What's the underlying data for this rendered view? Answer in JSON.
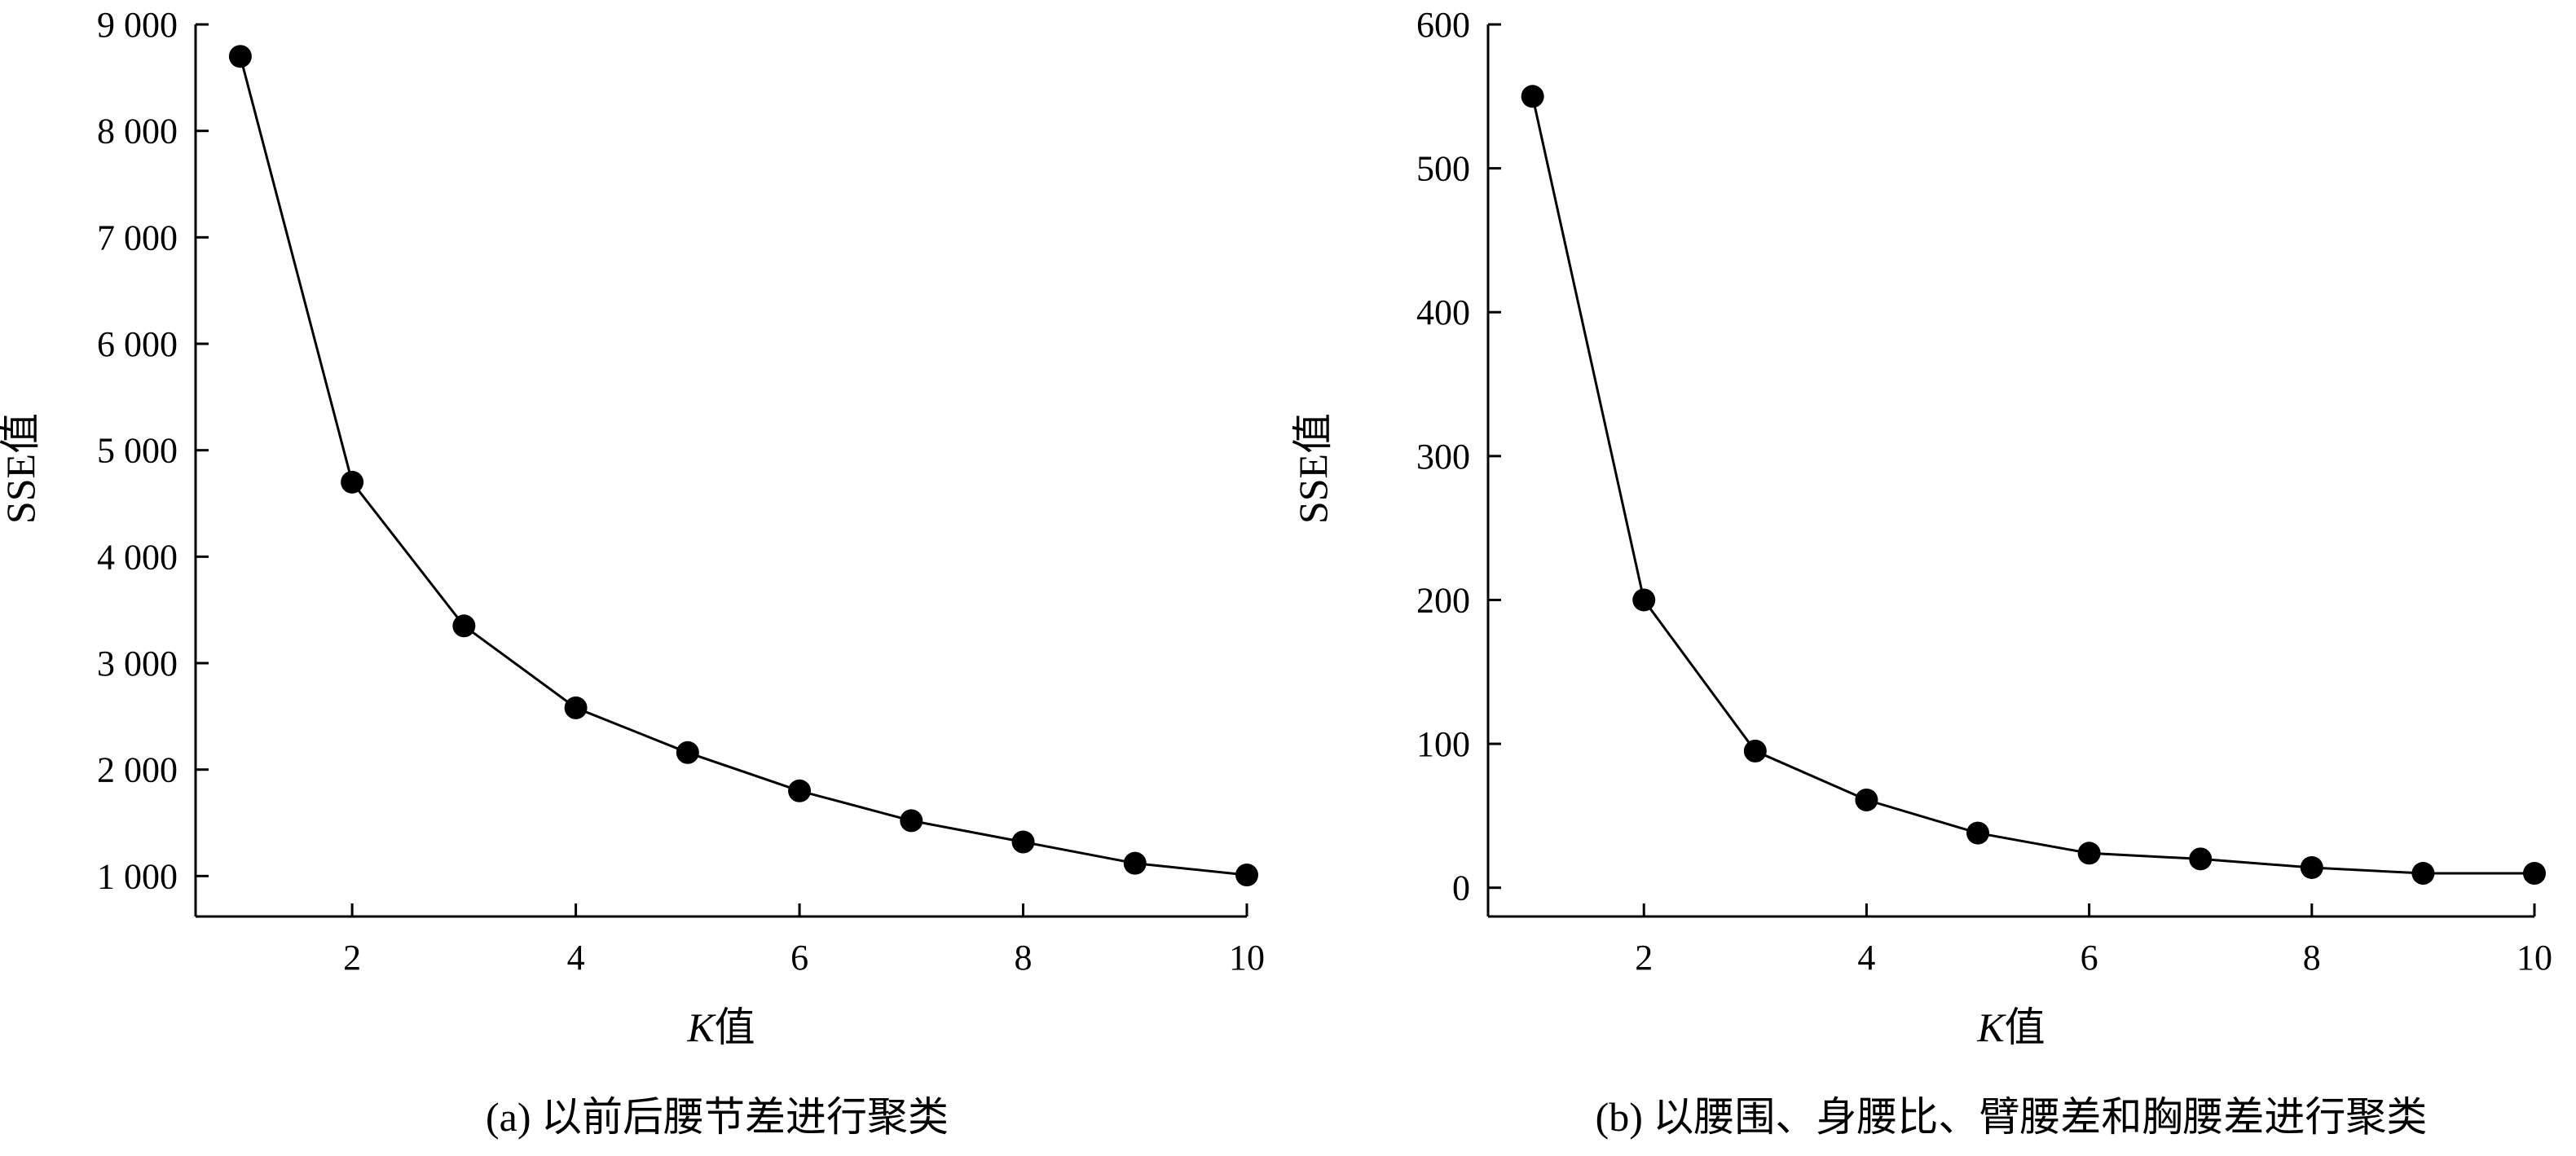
{
  "chart_data": [
    {
      "type": "line",
      "panel": "a",
      "caption": "(a) 以前后腰节差进行聚类",
      "xlabel_italic": "K",
      "xlabel_rest": "值",
      "ylabel": "SSE值",
      "x": [
        1,
        2,
        3,
        4,
        5,
        6,
        7,
        8,
        9,
        10
      ],
      "series": [
        {
          "values": [
            8700,
            4700,
            3350,
            2580,
            2160,
            1800,
            1520,
            1320,
            1120,
            1010
          ]
        }
      ],
      "xlim": [
        0.6,
        10
      ],
      "ylim": [
        620,
        9000
      ],
      "xticks": [
        2,
        4,
        6,
        8,
        10
      ],
      "xtick_labels": [
        "2",
        "4",
        "6",
        "8",
        "10"
      ],
      "yticks": [
        1000,
        2000,
        3000,
        4000,
        5000,
        6000,
        7000,
        8000,
        9000
      ],
      "ytick_labels": [
        "1 000",
        "2 000",
        "3 000",
        "4 000",
        "5 000",
        "6 000",
        "7 000",
        "8 000",
        "9 000"
      ],
      "grid": false,
      "legend": "none",
      "color": "#000000"
    },
    {
      "type": "line",
      "panel": "b",
      "caption": "(b) 以腰围、身腰比、臂腰差和胸腰差进行聚类",
      "xlabel_italic": "K",
      "xlabel_rest": "值",
      "ylabel": "SSE值",
      "x": [
        1,
        2,
        3,
        4,
        5,
        6,
        7,
        8,
        9,
        10
      ],
      "series": [
        {
          "values": [
            550,
            200,
            95,
            61,
            38,
            24,
            20,
            14,
            10,
            10
          ]
        }
      ],
      "xlim": [
        0.6,
        10
      ],
      "ylim": [
        -20,
        600
      ],
      "xticks": [
        2,
        4,
        6,
        8,
        10
      ],
      "xtick_labels": [
        "2",
        "4",
        "6",
        "8",
        "10"
      ],
      "yticks": [
        0,
        100,
        200,
        300,
        400,
        500,
        600
      ],
      "ytick_labels": [
        "0",
        "100",
        "200",
        "300",
        "400",
        "500",
        "600"
      ],
      "grid": false,
      "legend": "none",
      "color": "#000000"
    }
  ]
}
